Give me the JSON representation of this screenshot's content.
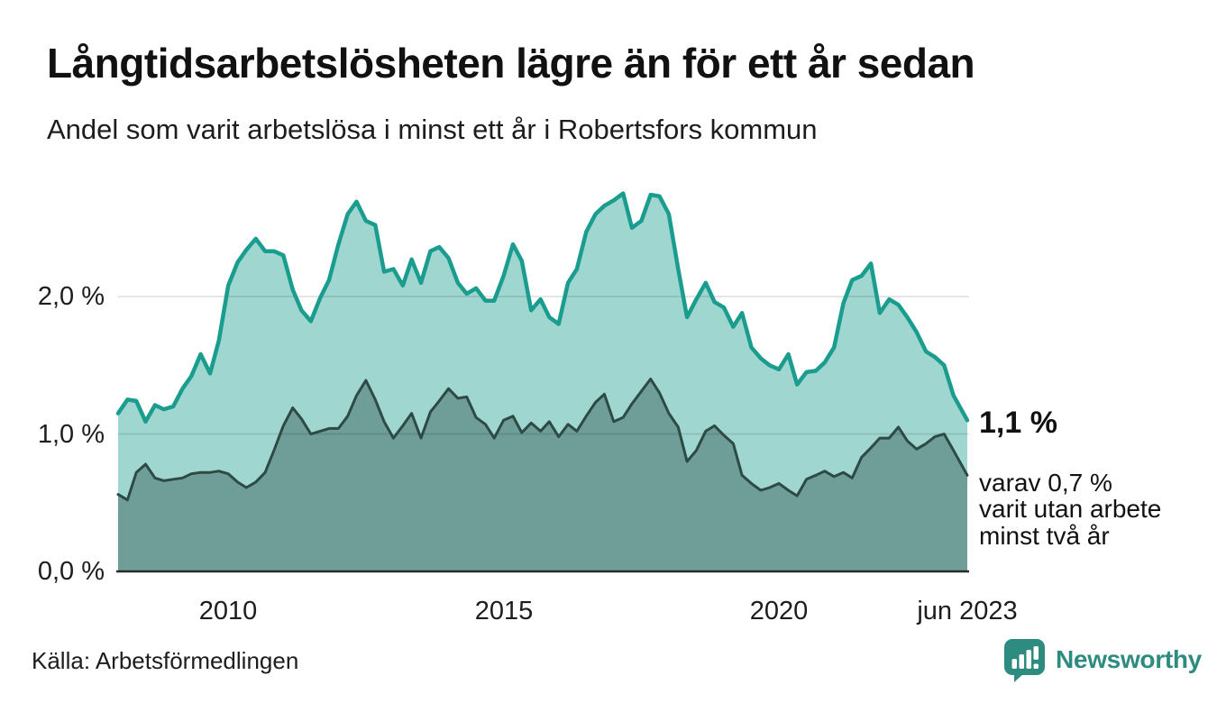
{
  "chart_data": {
    "type": "area",
    "title": "Långtidsarbetslösheten lägre än för ett år sedan",
    "subtitle": "Andel som varit arbetslösa i minst ett år i Robertsfors kommun",
    "unit": "%",
    "x_range": [
      2008.0,
      2023.42
    ],
    "ylim": [
      0,
      2.9
    ],
    "grid_values": [
      1.0,
      2.0
    ],
    "y_ticks": [
      {
        "value": 0,
        "label": "0,0 %"
      },
      {
        "value": 1,
        "label": "1,0 %"
      },
      {
        "value": 2,
        "label": "2,0 %"
      }
    ],
    "x_ticks": [
      {
        "value": 2010,
        "label": "2010"
      },
      {
        "value": 2015,
        "label": "2015"
      },
      {
        "value": 2020,
        "label": "2020"
      },
      {
        "value": 2023.42,
        "label": "jun 2023"
      }
    ],
    "x": [
      2008.0,
      2008.17,
      2008.33,
      2008.5,
      2008.67,
      2008.83,
      2009.0,
      2009.17,
      2009.33,
      2009.5,
      2009.67,
      2009.83,
      2010.0,
      2010.17,
      2010.33,
      2010.5,
      2010.67,
      2010.83,
      2011.0,
      2011.17,
      2011.33,
      2011.5,
      2011.67,
      2011.83,
      2012.0,
      2012.17,
      2012.33,
      2012.5,
      2012.67,
      2012.83,
      2013.0,
      2013.17,
      2013.33,
      2013.5,
      2013.67,
      2013.83,
      2014.0,
      2014.17,
      2014.33,
      2014.5,
      2014.67,
      2014.83,
      2015.0,
      2015.17,
      2015.33,
      2015.5,
      2015.67,
      2015.83,
      2016.0,
      2016.17,
      2016.33,
      2016.5,
      2016.67,
      2016.83,
      2017.0,
      2017.17,
      2017.33,
      2017.5,
      2017.67,
      2017.83,
      2018.0,
      2018.17,
      2018.33,
      2018.5,
      2018.67,
      2018.83,
      2019.0,
      2019.17,
      2019.33,
      2019.5,
      2019.67,
      2019.83,
      2020.0,
      2020.17,
      2020.33,
      2020.5,
      2020.67,
      2020.83,
      2021.0,
      2021.17,
      2021.33,
      2021.5,
      2021.67,
      2021.83,
      2022.0,
      2022.17,
      2022.33,
      2022.5,
      2022.67,
      2022.83,
      2023.0,
      2023.17,
      2023.42
    ],
    "series": [
      {
        "name": "Andel arbetslösa minst ett år",
        "line_color": "#1a9c8e",
        "fill_color": "#a0d6d0",
        "end_value": 1.1,
        "values": [
          1.15,
          1.25,
          1.24,
          1.09,
          1.21,
          1.18,
          1.2,
          1.33,
          1.42,
          1.58,
          1.44,
          1.68,
          2.08,
          2.25,
          2.34,
          2.42,
          2.33,
          2.33,
          2.3,
          2.05,
          1.9,
          1.82,
          1.99,
          2.12,
          2.38,
          2.6,
          2.69,
          2.55,
          2.52,
          2.18,
          2.2,
          2.08,
          2.27,
          2.1,
          2.33,
          2.36,
          2.28,
          2.1,
          2.02,
          2.06,
          1.97,
          1.97,
          2.15,
          2.38,
          2.26,
          1.9,
          1.98,
          1.85,
          1.8,
          2.1,
          2.2,
          2.47,
          2.6,
          2.66,
          2.7,
          2.75,
          2.5,
          2.55,
          2.74,
          2.73,
          2.6,
          2.2,
          1.85,
          1.98,
          2.1,
          1.96,
          1.92,
          1.78,
          1.88,
          1.63,
          1.55,
          1.5,
          1.47,
          1.58,
          1.36,
          1.45,
          1.46,
          1.52,
          1.63,
          1.95,
          2.12,
          2.15,
          2.24,
          1.88,
          1.98,
          1.94,
          1.85,
          1.74,
          1.6,
          1.56,
          1.5,
          1.28,
          1.1
        ]
      },
      {
        "name": "varav arbetslösa minst två år",
        "line_color": "#2d4a45",
        "fill_color": "#6f9d98",
        "end_value": 0.7,
        "values": [
          0.56,
          0.52,
          0.72,
          0.78,
          0.68,
          0.66,
          0.67,
          0.68,
          0.71,
          0.72,
          0.72,
          0.73,
          0.71,
          0.65,
          0.61,
          0.65,
          0.72,
          0.88,
          1.06,
          1.19,
          1.11,
          1.0,
          1.02,
          1.04,
          1.04,
          1.13,
          1.28,
          1.39,
          1.25,
          1.09,
          0.97,
          1.06,
          1.15,
          0.97,
          1.16,
          1.24,
          1.33,
          1.26,
          1.27,
          1.12,
          1.07,
          0.97,
          1.1,
          1.13,
          1.01,
          1.08,
          1.02,
          1.09,
          0.98,
          1.07,
          1.02,
          1.13,
          1.23,
          1.29,
          1.09,
          1.12,
          1.22,
          1.31,
          1.4,
          1.3,
          1.15,
          1.05,
          0.8,
          0.88,
          1.02,
          1.06,
          0.99,
          0.93,
          0.7,
          0.64,
          0.59,
          0.61,
          0.64,
          0.59,
          0.55,
          0.67,
          0.7,
          0.73,
          0.69,
          0.72,
          0.68,
          0.83,
          0.9,
          0.97,
          0.97,
          1.05,
          0.95,
          0.89,
          0.93,
          0.98,
          1.0,
          0.88,
          0.7
        ]
      }
    ],
    "annotations": {
      "end_label": "1,1 %",
      "sub_label": "varav 0,7 %\nvarit utan arbete\nminst två år"
    },
    "legend": "none",
    "grid": "horizontal-only"
  },
  "footer": {
    "source": "Källa: Arbetsförmedlingen",
    "brand": "Newsworthy"
  },
  "colors": {
    "brand_teal": "#2e8b80",
    "axis": "#2b2b2b",
    "background": "#ffffff"
  }
}
